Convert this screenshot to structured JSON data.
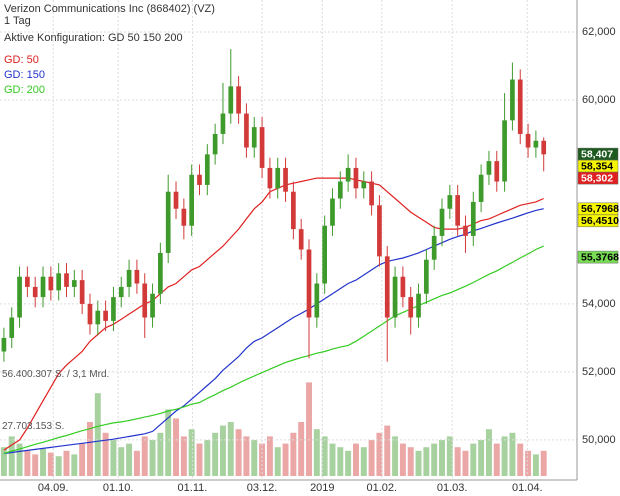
{
  "chart_data": {
    "type": "candlestick",
    "title": "Verizon Communications Inc (868402) (VZ)",
    "subtitle": "1 Tag",
    "config_label": "Aktive Konfiguration: GD 50 150 200",
    "xlim": [
      -0.5,
      73
    ],
    "xticks": [
      {
        "value": 6.3,
        "label": "04.09."
      },
      {
        "value": 14.6,
        "label": "01.10."
      },
      {
        "value": 24.1,
        "label": "01.11."
      },
      {
        "value": 33,
        "label": "03.12."
      },
      {
        "value": 40.7,
        "label": "2019"
      },
      {
        "value": 48.3,
        "label": "01.02."
      },
      {
        "value": 57.3,
        "label": "01.03."
      },
      {
        "value": 66.9,
        "label": "01.04."
      }
    ],
    "ylim": [
      48.82,
      62.94
    ],
    "yticks": [
      {
        "value": 62,
        "label": "62,000"
      },
      {
        "value": 60,
        "label": "60,000"
      },
      {
        "value": 54,
        "label": "54,000"
      },
      {
        "value": 52,
        "label": "52,000"
      },
      {
        "value": 50,
        "label": "50,000"
      }
    ],
    "grid": true,
    "up_color": "#3f9a2c",
    "down_color": "#d23a3a",
    "open": [
      52.6,
      53.0,
      53.6,
      54.8,
      54.5,
      54.2,
      54.8,
      54.4,
      54.9,
      54.5,
      54.7,
      54.0,
      53.4,
      53.8,
      53.5,
      54.2,
      54.5,
      55.0,
      54.6,
      53.6,
      54.3,
      55.5,
      57.3,
      56.8,
      56.3,
      57.8,
      57.5,
      58.4,
      59.0,
      59.6,
      60.4,
      59.6,
      58.6,
      59.2,
      58.0,
      57.4,
      58.0,
      57.3,
      56.2,
      55.6,
      53.6,
      54.6,
      56.3,
      57.1,
      57.6,
      58.0,
      57.4,
      57.6,
      56.9,
      55.4,
      53.6,
      54.8,
      54.2,
      53.6,
      54.3,
      55.3,
      56.0,
      56.8,
      57.2,
      56.3,
      56.0,
      57.0,
      57.8,
      58.2,
      57.6,
      59.4,
      60.6,
      59.0,
      58.6,
      58.8
    ],
    "high": [
      53.3,
      53.9,
      55.1,
      55.1,
      54.8,
      55.1,
      55.1,
      55.2,
      55.2,
      55.0,
      55.0,
      54.3,
      54.1,
      54.1,
      54.5,
      54.8,
      55.3,
      55.3,
      54.9,
      54.6,
      55.8,
      57.8,
      57.6,
      57.1,
      58.1,
      58.1,
      58.7,
      59.3,
      60.5,
      61.5,
      60.7,
      59.9,
      59.5,
      59.5,
      58.3,
      58.3,
      58.3,
      57.6,
      56.5,
      55.9,
      54.9,
      56.6,
      57.4,
      57.9,
      58.4,
      58.3,
      57.9,
      57.9,
      57.2,
      55.7,
      55.1,
      55.1,
      54.5,
      54.6,
      55.6,
      56.3,
      57.1,
      57.5,
      57.5,
      56.6,
      57.3,
      58.1,
      58.5,
      58.5,
      60.2,
      61.1,
      60.9,
      59.3,
      59.1,
      58.9
    ],
    "low": [
      52.3,
      52.7,
      53.3,
      54.2,
      53.9,
      53.9,
      54.1,
      54.1,
      54.2,
      54.2,
      53.7,
      53.1,
      53.1,
      53.2,
      53.2,
      53.9,
      54.2,
      54.3,
      53.0,
      53.3,
      54.0,
      55.2,
      56.5,
      55.9,
      56.0,
      57.2,
      57.2,
      58.1,
      58.7,
      59.3,
      59.3,
      58.3,
      58.3,
      57.7,
      57.1,
      57.1,
      57.0,
      55.9,
      55.3,
      52.4,
      53.3,
      54.3,
      56.0,
      56.8,
      57.3,
      57.1,
      57.1,
      56.6,
      55.1,
      52.3,
      53.3,
      53.9,
      53.1,
      53.3,
      54.0,
      55.0,
      55.7,
      56.5,
      56.0,
      55.5,
      55.7,
      56.7,
      57.5,
      57.3,
      57.3,
      59.1,
      58.7,
      58.3,
      58.3,
      57.9
    ],
    "close": [
      53.0,
      53.6,
      54.8,
      54.5,
      54.2,
      54.8,
      54.4,
      54.9,
      54.5,
      54.7,
      54.0,
      53.4,
      53.8,
      53.5,
      54.2,
      54.5,
      55.0,
      54.6,
      53.6,
      54.3,
      55.5,
      57.3,
      56.8,
      56.3,
      57.8,
      57.5,
      58.4,
      59.0,
      59.6,
      60.4,
      59.6,
      58.6,
      59.2,
      58.0,
      57.4,
      58.0,
      57.3,
      56.2,
      55.6,
      53.6,
      54.6,
      56.3,
      57.1,
      57.6,
      58.0,
      57.4,
      57.6,
      56.9,
      55.4,
      53.6,
      54.8,
      54.2,
      53.6,
      54.3,
      55.3,
      56.0,
      56.8,
      57.2,
      56.3,
      56.0,
      57.0,
      57.8,
      58.2,
      57.6,
      59.4,
      60.6,
      59.0,
      58.6,
      58.8,
      58.4
    ],
    "series": [
      {
        "name": "GD: 50",
        "color": "#e02020",
        "values": [
          49.7,
          49.85,
          50.0,
          50.35,
          50.75,
          51.15,
          51.55,
          51.95,
          52.2,
          52.4,
          52.6,
          52.9,
          53.1,
          53.3,
          53.4,
          53.55,
          53.7,
          53.85,
          54.0,
          54.1,
          54.3,
          54.5,
          54.6,
          54.8,
          55.0,
          55.1,
          55.3,
          55.5,
          55.7,
          55.95,
          56.2,
          56.5,
          56.8,
          57.0,
          57.3,
          57.4,
          57.5,
          57.55,
          57.6,
          57.65,
          57.7,
          57.7,
          57.7,
          57.7,
          57.7,
          57.65,
          57.6,
          57.55,
          57.5,
          57.3,
          57.1,
          56.9,
          56.7,
          56.55,
          56.4,
          56.25,
          56.2,
          56.2,
          56.2,
          56.25,
          56.35,
          56.45,
          56.5,
          56.6,
          56.7,
          56.8,
          56.9,
          56.95,
          57.0,
          57.1
        ]
      },
      {
        "name": "GD: 150",
        "color": "#2233cc",
        "values": [
          49.6,
          49.63,
          49.66,
          49.69,
          49.72,
          49.75,
          49.78,
          49.81,
          49.84,
          49.87,
          49.9,
          49.93,
          49.96,
          49.99,
          50.02,
          50.06,
          50.1,
          50.14,
          50.18,
          50.25,
          50.45,
          50.65,
          50.85,
          51.0,
          51.2,
          51.4,
          51.6,
          51.8,
          52.05,
          52.25,
          52.45,
          52.7,
          52.9,
          53.0,
          53.15,
          53.3,
          53.45,
          53.6,
          53.72,
          53.85,
          54.0,
          54.15,
          54.3,
          54.45,
          54.6,
          54.7,
          54.85,
          55.0,
          55.15,
          55.25,
          55.3,
          55.35,
          55.42,
          55.5,
          55.6,
          55.7,
          55.8,
          55.9,
          55.98,
          56.05,
          56.15,
          56.22,
          56.3,
          56.38,
          56.45,
          56.52,
          56.6,
          56.68,
          56.75,
          56.8
        ]
      },
      {
        "name": "GD: 200",
        "color": "#33cc22",
        "values": [
          49.6,
          49.67,
          49.73,
          49.8,
          49.87,
          49.93,
          50.0,
          50.07,
          50.13,
          50.2,
          50.27,
          50.33,
          50.4,
          50.45,
          50.5,
          50.53,
          50.57,
          50.62,
          50.67,
          50.72,
          50.78,
          50.85,
          50.9,
          50.97,
          51.05,
          51.1,
          51.22,
          51.33,
          51.45,
          51.55,
          51.67,
          51.78,
          51.88,
          51.98,
          52.08,
          52.18,
          52.28,
          52.35,
          52.42,
          52.48,
          52.55,
          52.6,
          52.67,
          52.73,
          52.78,
          52.9,
          53.05,
          53.2,
          53.35,
          53.5,
          53.65,
          53.75,
          53.85,
          53.95,
          54.05,
          54.15,
          54.25,
          54.32,
          54.42,
          54.52,
          54.63,
          54.75,
          54.87,
          54.97,
          55.1,
          55.22,
          55.35,
          55.47,
          55.6,
          55.7
        ]
      }
    ],
    "volume": [
      16000000,
      22000000,
      18000000,
      14000000,
      12000000,
      15000000,
      13000000,
      11000000,
      14000000,
      12000000,
      18000000,
      30000000,
      46000000,
      24000000,
      20000000,
      16000000,
      18000000,
      14000000,
      22000000,
      20000000,
      24000000,
      37000000,
      32000000,
      22000000,
      26000000,
      18000000,
      20000000,
      24000000,
      28000000,
      30000000,
      26000000,
      22000000,
      20000000,
      18000000,
      22000000,
      16000000,
      18000000,
      24000000,
      30000000,
      52000000,
      26000000,
      22000000,
      18000000,
      16000000,
      14000000,
      18000000,
      16000000,
      20000000,
      24000000,
      28000000,
      22000000,
      18000000,
      16000000,
      14000000,
      16000000,
      18000000,
      20000000,
      22000000,
      16000000,
      14000000,
      18000000,
      20000000,
      26000000,
      18000000,
      22000000,
      24000000,
      18000000,
      14000000,
      12000000,
      14000000
    ],
    "vlim": [
      0,
      60000000
    ],
    "vticks": [
      {
        "value": 56400307,
        "label": "56.400.307 S. / 3,1 Mrd."
      },
      {
        "value": 27703153,
        "label": "27.703.153 S."
      }
    ],
    "price_labels": [
      {
        "value": 58.407,
        "label": "58,407",
        "color": "#1d5a1d",
        "text_color": "#ffffff"
      },
      {
        "value": 58.354,
        "label": "58,354",
        "color": "#f5f500",
        "text_color": "#000000"
      },
      {
        "value": 58.302,
        "label": "58,302",
        "color": "#e02020",
        "text_color": "#ffffff"
      },
      {
        "value": 56.7968,
        "label": "56,7968",
        "color": "#f5f500",
        "text_color": "#000000"
      },
      {
        "value": 56.451,
        "label": "56,4510",
        "color": "#f5f500",
        "text_color": "#000000"
      },
      {
        "value": 55.3768,
        "label": "55,3768",
        "color": "#77dd55",
        "text_color": "#000000"
      }
    ]
  }
}
